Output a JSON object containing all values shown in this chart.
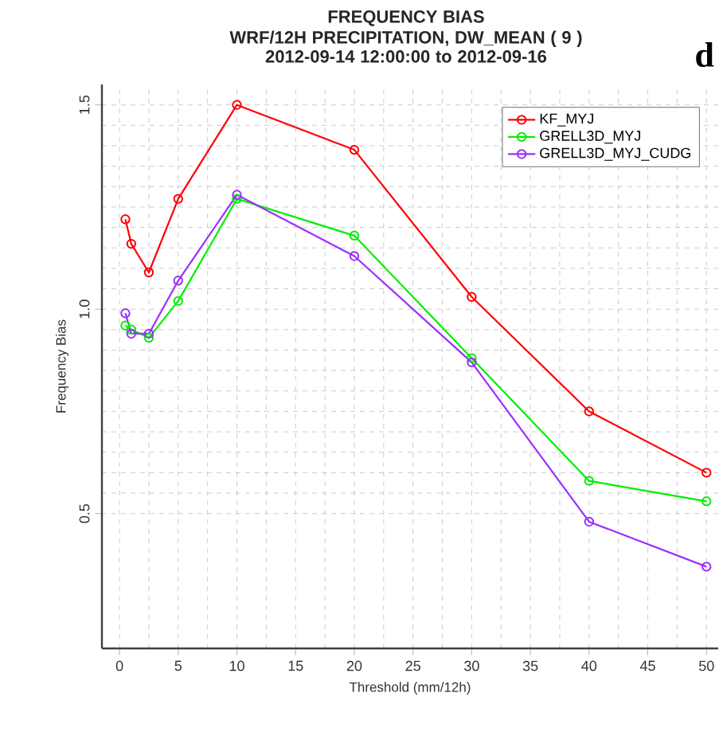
{
  "chart_data": {
    "type": "line",
    "title": "FREQUENCY BIAS",
    "subtitle": "WRF/12H PRECIPITATION, DW_MEAN ( 9 )\n2012-09-14 12:00:00 to 2012-09-16",
    "xlabel": "Threshold (mm/12h)",
    "ylabel": "Frequency Bias",
    "annotations": [
      "d"
    ],
    "x": [
      0.5,
      1,
      2.5,
      5,
      10,
      20,
      30,
      40,
      50
    ],
    "series": [
      {
        "name": "KF_MYJ",
        "color": "#ff0000",
        "values": [
          1.22,
          1.16,
          1.09,
          1.27,
          1.5,
          1.39,
          1.03,
          0.75,
          0.6
        ]
      },
      {
        "name": "GRELL3D_MYJ",
        "color": "#00ee00",
        "values": [
          0.96,
          0.95,
          0.93,
          1.02,
          1.27,
          1.18,
          0.88,
          0.58,
          0.53
        ]
      },
      {
        "name": "GRELL3D_MYJ_CUDG",
        "color": "#9b30ff",
        "values": [
          0.99,
          0.94,
          0.94,
          1.07,
          1.28,
          1.13,
          0.87,
          0.48,
          0.37
        ]
      }
    ],
    "xlim": [
      -1.5,
      51
    ],
    "ylim": [
      0.17,
      1.55
    ],
    "xticks": [
      0,
      5,
      10,
      15,
      20,
      25,
      30,
      35,
      40,
      45,
      50
    ],
    "yticks": [
      0.5,
      {
        "value": 1,
        "label": "1.0"
      },
      1.5
    ],
    "grid": true,
    "legend": "top right",
    "marker": "circle",
    "line_style": "solid"
  }
}
